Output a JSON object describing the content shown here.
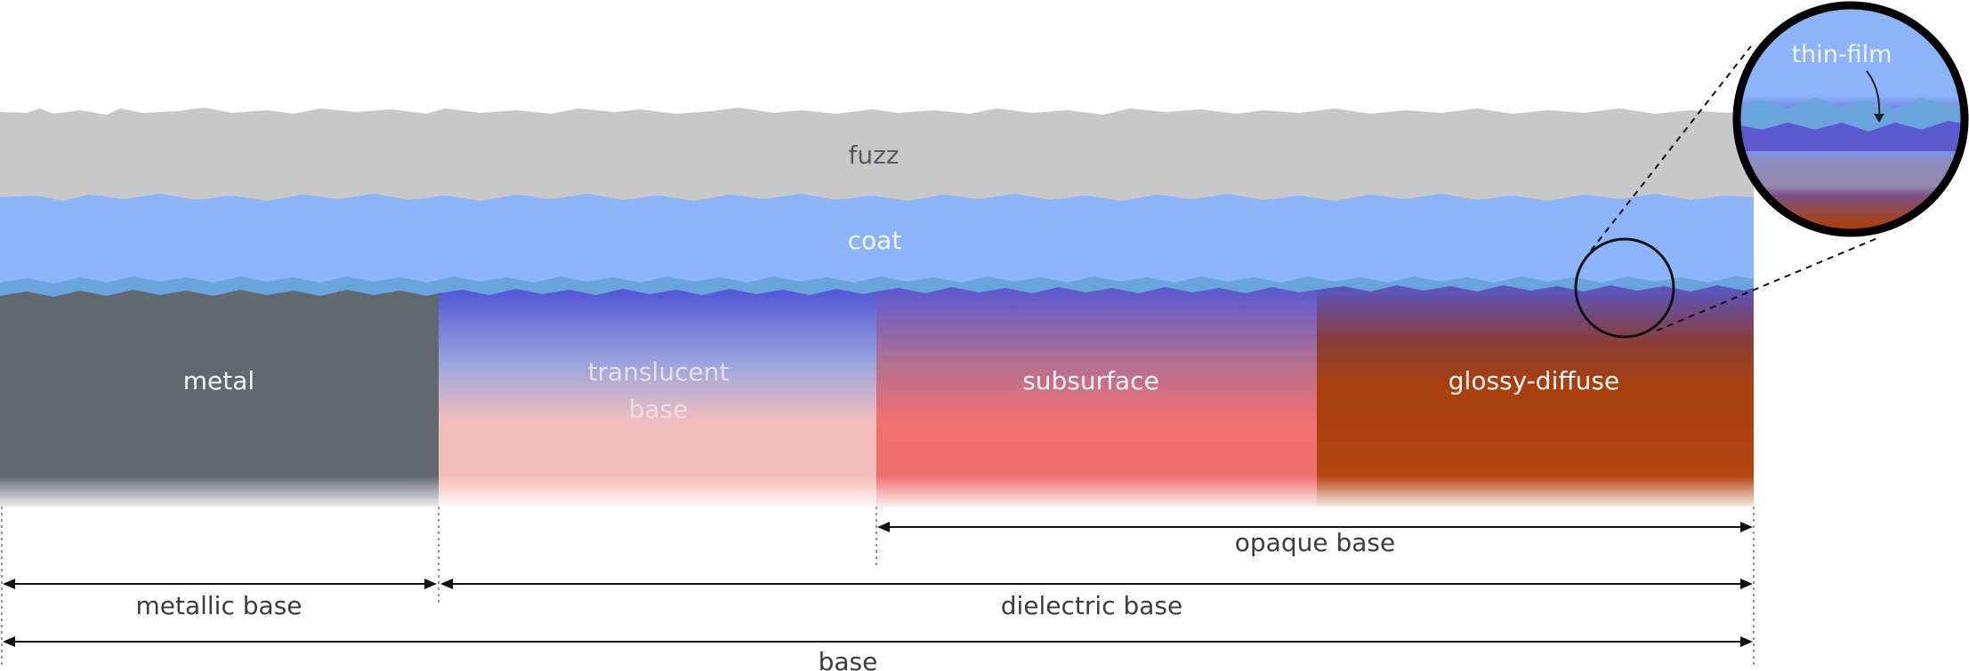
{
  "layers": {
    "fuzz": "fuzz",
    "coat": "coat",
    "thin_film": "thin-film"
  },
  "base_blocks": {
    "metal": "metal",
    "translucent_line1": "translucent",
    "translucent_line2": "base",
    "subsurface": "subsurface",
    "glossy_diffuse": "glossy-diffuse"
  },
  "dimensions": {
    "opaque_base": "opaque base",
    "metallic_base": "metallic base",
    "dielectric_base": "dielectric base",
    "base": "base"
  },
  "colors": {
    "fuzz": "#c8c8c8",
    "coat": "#8cb4fa",
    "coat_interface": "#6aa4dc",
    "thin_film_purple": "#5a5ad2",
    "metal": "#626870",
    "translucent_bottom": "#f4bcb4",
    "subsurface": "#ee7070",
    "glossy_diffuse": "#b0420e"
  }
}
